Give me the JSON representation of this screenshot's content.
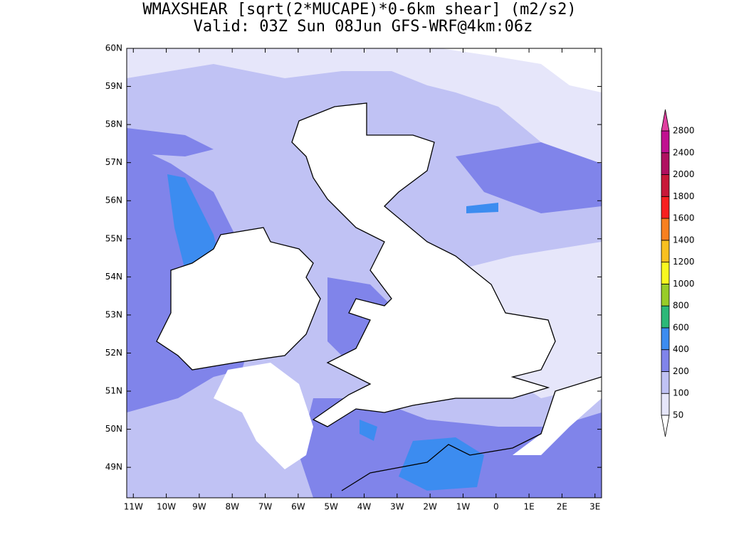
{
  "chart_data": {
    "type": "map",
    "title": "WMAXSHEAR [sqrt(2*MUCAPE)*0-6km shear] (m2/s2)",
    "subtitle": "Valid: 03Z Sun 08Jun GFS-WRF@4km:06z",
    "xlim": [
      -11.2,
      3.2
    ],
    "ylim": [
      48.2,
      60
    ],
    "xticks": [
      {
        "value": -11,
        "label": "11W"
      },
      {
        "value": -10,
        "label": "10W"
      },
      {
        "value": -9,
        "label": "9W"
      },
      {
        "value": -8,
        "label": "8W"
      },
      {
        "value": -7,
        "label": "7W"
      },
      {
        "value": -6,
        "label": "6W"
      },
      {
        "value": -5,
        "label": "5W"
      },
      {
        "value": -4,
        "label": "4W"
      },
      {
        "value": -3,
        "label": "3W"
      },
      {
        "value": -2,
        "label": "2W"
      },
      {
        "value": -1,
        "label": "1W"
      },
      0,
      {
        "value": 1,
        "label": "1E"
      },
      {
        "value": 2,
        "label": "2E"
      },
      {
        "value": 3,
        "label": "3E"
      }
    ],
    "yticks": [
      {
        "value": 49,
        "label": "49N"
      },
      {
        "value": 50,
        "label": "50N"
      },
      {
        "value": 51,
        "label": "51N"
      },
      {
        "value": 52,
        "label": "52N"
      },
      {
        "value": 53,
        "label": "53N"
      },
      {
        "value": 54,
        "label": "54N"
      },
      {
        "value": 55,
        "label": "55N"
      },
      {
        "value": 56,
        "label": "56N"
      },
      {
        "value": 57,
        "label": "57N"
      },
      {
        "value": 58,
        "label": "58N"
      },
      {
        "value": 59,
        "label": "59N"
      },
      {
        "value": 60,
        "label": "60N"
      }
    ],
    "colorbar": {
      "levels": [
        50,
        100,
        200,
        400,
        600,
        800,
        1000,
        1200,
        1400,
        1600,
        1800,
        2000,
        2400,
        2800
      ],
      "colors": [
        "#ffffff",
        "#e6e6fa",
        "#c0c2f4",
        "#8084ea",
        "#3c8cf0",
        "#2cb878",
        "#98cc28",
        "#f8f820",
        "#f8c020",
        "#f88020",
        "#f82020",
        "#c81838",
        "#b01060",
        "#c01090",
        "#e040a0"
      ]
    }
  }
}
